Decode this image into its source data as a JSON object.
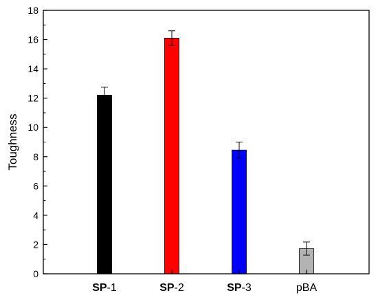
{
  "chart_data": {
    "type": "bar",
    "title": "",
    "xlabel": "",
    "ylabel": "Toughness",
    "ylim": [
      0,
      18
    ],
    "yticks": [
      0,
      2,
      4,
      6,
      8,
      10,
      12,
      14,
      16,
      18
    ],
    "grid": false,
    "legend": "none",
    "categories": [
      {
        "prefix": "SP",
        "suffix": "-1",
        "label": "SP-1"
      },
      {
        "prefix": "SP",
        "suffix": "-2",
        "label": "SP-2"
      },
      {
        "prefix": "SP",
        "suffix": "-3",
        "label": "SP-3"
      },
      {
        "prefix": "",
        "suffix": "pBA",
        "label": "pBA"
      }
    ],
    "values": [
      12.2,
      16.1,
      8.45,
      1.72
    ],
    "errors": [
      0.55,
      0.5,
      0.55,
      0.45
    ],
    "colors": [
      "#000000",
      "#ff0000",
      "#0000ff",
      "#b3b3b3"
    ]
  }
}
